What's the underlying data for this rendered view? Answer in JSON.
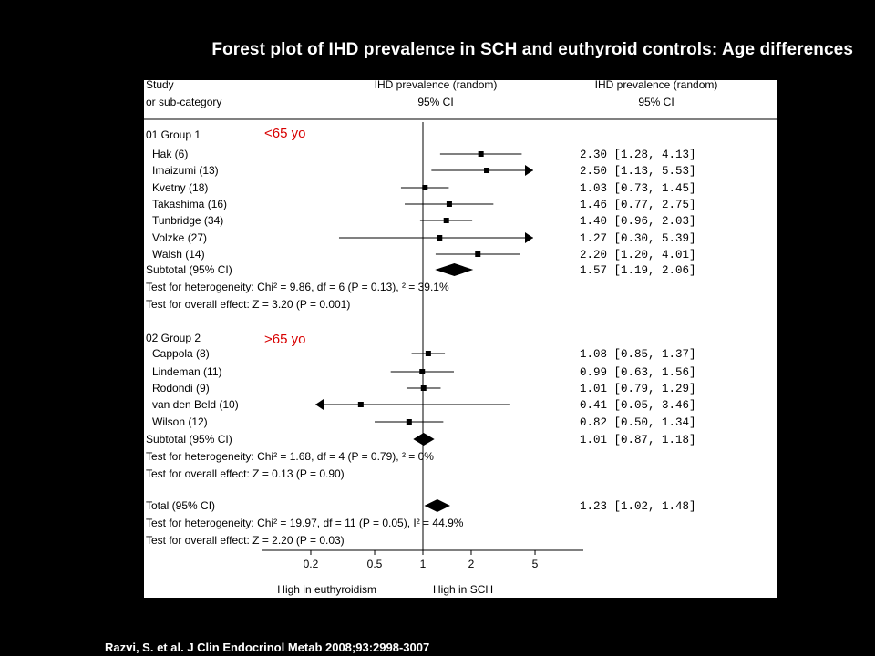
{
  "slide": {
    "title": "Forest plot of IHD prevalence in SCH and euthyroid controls: Age differences",
    "citation": "Razvi, S. et al. J Clin Endocrinol Metab 2008;93:2998-3007"
  },
  "colors": {
    "background": "#000000",
    "plot_background": "#ffffff",
    "age_label": "#d80000",
    "marks": "#000000"
  },
  "chart_data": {
    "type": "forest",
    "x_scale": "log",
    "xlim": [
      0.1,
      10
    ],
    "null_value": 1,
    "ticks": [
      "0.2",
      "0.5",
      "1",
      "2",
      "5"
    ],
    "tick_values": [
      0.2,
      0.5,
      1,
      2,
      5
    ],
    "header": {
      "study_line1": "Study",
      "study_line2": "or sub-category",
      "effect_line1": "IHD prevalence (random)",
      "effect_line2": "95% CI",
      "effect_col_line1": "IHD prevalence (random)",
      "effect_col_line2": "95% CI"
    },
    "xlabel_left": "High in euthyroidism",
    "xlabel_right": "High in SCH",
    "groups": [
      {
        "label": "01 Group 1",
        "age_label": "<65 yo",
        "studies": [
          {
            "name": "Hak (6)",
            "est": 2.3,
            "lo": 1.28,
            "hi": 4.13,
            "text": "2.30 [1.28, 4.13]"
          },
          {
            "name": "Imaizumi (13)",
            "est": 2.5,
            "lo": 1.13,
            "hi": 5.53,
            "text": "2.50 [1.13, 5.53]"
          },
          {
            "name": "Kvetny (18)",
            "est": 1.03,
            "lo": 0.73,
            "hi": 1.45,
            "text": "1.03 [0.73, 1.45]"
          },
          {
            "name": "Takashima (16)",
            "est": 1.46,
            "lo": 0.77,
            "hi": 2.75,
            "text": "1.46 [0.77, 2.75]"
          },
          {
            "name": "Tunbridge (34)",
            "est": 1.4,
            "lo": 0.96,
            "hi": 2.03,
            "text": "1.40 [0.96, 2.03]"
          },
          {
            "name": "Volzke (27)",
            "est": 1.27,
            "lo": 0.3,
            "hi": 5.39,
            "text": "1.27 [0.30, 5.39]"
          },
          {
            "name": "Walsh (14)",
            "est": 2.2,
            "lo": 1.2,
            "hi": 4.01,
            "text": "2.20 [1.20, 4.01]"
          }
        ],
        "subtotal": {
          "label": "Subtotal (95% CI)",
          "est": 1.57,
          "lo": 1.19,
          "hi": 2.06,
          "text": "1.57 [1.19, 2.06]"
        },
        "heterogeneity": "Test for heterogeneity: Chi² = 9.86, df = 6 (P = 0.13), ² = 39.1%",
        "overall_effect": "Test for overall effect: Z = 3.20 (P = 0.001)"
      },
      {
        "label": "02 Group 2",
        "age_label": ">65 yo",
        "studies": [
          {
            "name": "Cappola (8)",
            "est": 1.08,
            "lo": 0.85,
            "hi": 1.37,
            "text": "1.08 [0.85, 1.37]"
          },
          {
            "name": "Lindeman (11)",
            "est": 0.99,
            "lo": 0.63,
            "hi": 1.56,
            "text": "0.99 [0.63, 1.56]"
          },
          {
            "name": "Rodondi (9)",
            "est": 1.01,
            "lo": 0.79,
            "hi": 1.29,
            "text": "1.01 [0.79, 1.29]"
          },
          {
            "name": "van den Beld (10)",
            "est": 0.41,
            "lo": 0.05,
            "hi": 3.46,
            "text": "0.41 [0.05, 3.46]"
          },
          {
            "name": "Wilson (12)",
            "est": 0.82,
            "lo": 0.5,
            "hi": 1.34,
            "text": "0.82 [0.50, 1.34]"
          }
        ],
        "subtotal": {
          "label": "Subtotal (95% CI)",
          "est": 1.01,
          "lo": 0.87,
          "hi": 1.18,
          "text": "1.01 [0.87, 1.18]"
        },
        "heterogeneity": "Test for heterogeneity: Chi² = 1.68, df = 4 (P = 0.79), ² = 0%",
        "overall_effect": "Test for overall effect: Z = 0.13 (P = 0.90)"
      }
    ],
    "total": {
      "label": "Total (95% CI)",
      "est": 1.23,
      "lo": 1.02,
      "hi": 1.48,
      "text": "1.23 [1.02, 1.48]",
      "heterogeneity": "Test for heterogeneity: Chi² = 19.97, df = 11 (P = 0.05), I² = 44.9%",
      "overall_effect": "Test for overall effect: Z = 2.20 (P = 0.03)"
    }
  }
}
